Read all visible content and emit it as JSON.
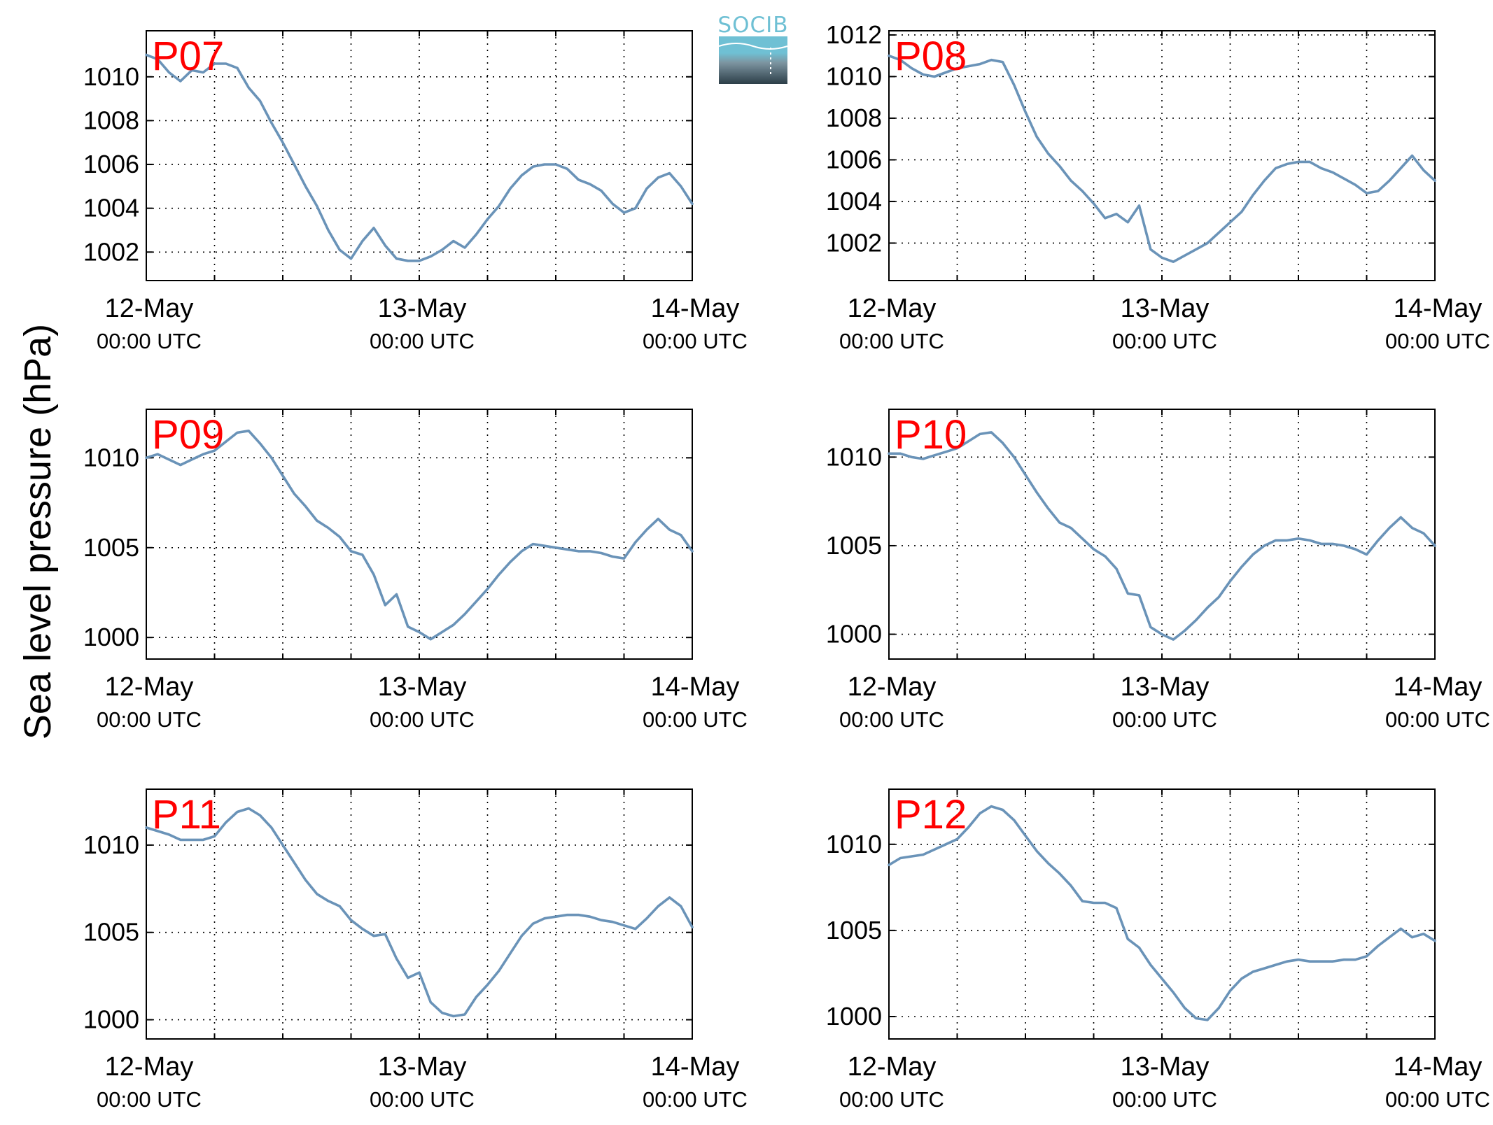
{
  "figure": {
    "ylabel": "Sea level pressure (hPa)",
    "logo_text": "SOCIB",
    "line_color": "#6a93b8",
    "station_label_color": "#ff0000",
    "logo_top_color": "#6fc0d4",
    "logo_bottom_color": "#2c3e48"
  },
  "chart_data": [
    {
      "type": "line",
      "title": "P07",
      "xlim": [
        0,
        48
      ],
      "ylim": [
        1000.7,
        1012.1
      ],
      "yticks": [
        1002,
        1004,
        1006,
        1008,
        1010
      ],
      "xticks": [
        {
          "x": 0,
          "date": "12-May",
          "time": "00:00 UTC"
        },
        {
          "x": 24,
          "date": "13-May",
          "time": "00:00 UTC"
        },
        {
          "x": 48,
          "date": "14-May",
          "time": "00:00 UTC"
        }
      ],
      "grid_x": [
        6,
        12,
        18,
        24,
        30,
        36,
        42
      ],
      "grid_y": [
        1002,
        1004,
        1006,
        1008,
        1010
      ],
      "grid": true,
      "series": [
        {
          "x": [
            0,
            1,
            2,
            3,
            4,
            5,
            6,
            7,
            8,
            9,
            10,
            11,
            12,
            13,
            14,
            15,
            16,
            17,
            18,
            19,
            20,
            21,
            22,
            23,
            24,
            25,
            26,
            27,
            28,
            29,
            30,
            31,
            32,
            33,
            34,
            35,
            36,
            37,
            38,
            39,
            40,
            41,
            42,
            43,
            44,
            45,
            46,
            47,
            48
          ],
          "y": [
            1011.0,
            1010.8,
            1010.2,
            1009.8,
            1010.3,
            1010.2,
            1010.6,
            1010.6,
            1010.4,
            1009.5,
            1008.9,
            1007.9,
            1007.0,
            1006.0,
            1005.0,
            1004.1,
            1003.0,
            1002.1,
            1001.7,
            1002.5,
            1003.1,
            1002.3,
            1001.7,
            1001.6,
            1001.6,
            1001.8,
            1002.1,
            1002.5,
            1002.2,
            1002.8,
            1003.5,
            1004.1,
            1004.9,
            1005.5,
            1005.9,
            1006.0,
            1006.0,
            1005.8,
            1005.3,
            1005.1,
            1004.8,
            1004.2,
            1003.8,
            1004.0,
            1004.9,
            1005.4,
            1005.6,
            1005.0,
            1004.2
          ]
        }
      ]
    },
    {
      "type": "line",
      "title": "P08",
      "xlim": [
        0,
        48
      ],
      "ylim": [
        1000.2,
        1012.2
      ],
      "yticks": [
        1002,
        1004,
        1006,
        1008,
        1010,
        1012
      ],
      "xticks": [
        {
          "x": 0,
          "date": "12-May",
          "time": "00:00 UTC"
        },
        {
          "x": 24,
          "date": "13-May",
          "time": "00:00 UTC"
        },
        {
          "x": 48,
          "date": "14-May",
          "time": "00:00 UTC"
        }
      ],
      "grid_x": [
        6,
        12,
        18,
        24,
        30,
        36,
        42
      ],
      "grid_y": [
        1002,
        1004,
        1006,
        1008,
        1010,
        1012
      ],
      "grid": true,
      "series": [
        {
          "x": [
            0,
            1,
            2,
            3,
            4,
            5,
            6,
            7,
            8,
            9,
            10,
            11,
            12,
            13,
            14,
            15,
            16,
            17,
            18,
            19,
            20,
            21,
            22,
            23,
            24,
            25,
            26,
            27,
            28,
            29,
            30,
            31,
            32,
            33,
            34,
            35,
            36,
            37,
            38,
            39,
            40,
            41,
            42,
            43,
            44,
            45,
            46,
            47,
            48
          ],
          "y": [
            1011.0,
            1010.8,
            1010.4,
            1010.1,
            1010.0,
            1010.2,
            1010.4,
            1010.5,
            1010.6,
            1010.8,
            1010.7,
            1009.6,
            1008.3,
            1007.1,
            1006.3,
            1005.7,
            1005.0,
            1004.5,
            1003.9,
            1003.2,
            1003.4,
            1003.0,
            1003.8,
            1001.7,
            1001.3,
            1001.1,
            1001.4,
            1001.7,
            1002.0,
            1002.5,
            1003.0,
            1003.5,
            1004.3,
            1005.0,
            1005.6,
            1005.8,
            1005.9,
            1005.9,
            1005.6,
            1005.4,
            1005.1,
            1004.8,
            1004.4,
            1004.5,
            1005.0,
            1005.6,
            1006.2,
            1005.5,
            1005.0
          ]
        }
      ]
    },
    {
      "type": "line",
      "title": "P09",
      "xlim": [
        0,
        48
      ],
      "ylim": [
        998.8,
        1012.7
      ],
      "yticks": [
        1000,
        1005,
        1010
      ],
      "xticks": [
        {
          "x": 0,
          "date": "12-May",
          "time": "00:00 UTC"
        },
        {
          "x": 24,
          "date": "13-May",
          "time": "00:00 UTC"
        },
        {
          "x": 48,
          "date": "14-May",
          "time": "00:00 UTC"
        }
      ],
      "grid_x": [
        6,
        12,
        18,
        24,
        30,
        36,
        42
      ],
      "grid_y": [
        1000,
        1005,
        1010
      ],
      "grid": true,
      "series": [
        {
          "x": [
            0,
            1,
            2,
            3,
            4,
            5,
            6,
            7,
            8,
            9,
            10,
            11,
            12,
            13,
            14,
            15,
            16,
            17,
            18,
            19,
            20,
            21,
            22,
            23,
            24,
            25,
            26,
            27,
            28,
            29,
            30,
            31,
            32,
            33,
            34,
            35,
            36,
            37,
            38,
            39,
            40,
            41,
            42,
            43,
            44,
            45,
            46,
            47,
            48
          ],
          "y": [
            1010.0,
            1010.2,
            1009.9,
            1009.6,
            1009.9,
            1010.2,
            1010.4,
            1010.9,
            1011.4,
            1011.5,
            1010.8,
            1010.0,
            1009.0,
            1008.0,
            1007.3,
            1006.5,
            1006.1,
            1005.6,
            1004.8,
            1004.6,
            1003.5,
            1001.8,
            1002.4,
            1000.6,
            1000.3,
            999.9,
            1000.3,
            1000.7,
            1001.3,
            1002.0,
            1002.7,
            1003.5,
            1004.2,
            1004.8,
            1005.2,
            1005.1,
            1005.0,
            1004.9,
            1004.8,
            1004.8,
            1004.7,
            1004.5,
            1004.4,
            1005.3,
            1006.0,
            1006.6,
            1006.0,
            1005.7,
            1004.8
          ]
        }
      ]
    },
    {
      "type": "line",
      "title": "P10",
      "xlim": [
        0,
        48
      ],
      "ylim": [
        998.6,
        1012.7
      ],
      "yticks": [
        1000,
        1005,
        1010
      ],
      "xticks": [
        {
          "x": 0,
          "date": "12-May",
          "time": "00:00 UTC"
        },
        {
          "x": 24,
          "date": "13-May",
          "time": "00:00 UTC"
        },
        {
          "x": 48,
          "date": "14-May",
          "time": "00:00 UTC"
        }
      ],
      "grid_x": [
        6,
        12,
        18,
        24,
        30,
        36,
        42
      ],
      "grid_y": [
        1000,
        1005,
        1010
      ],
      "grid": true,
      "series": [
        {
          "x": [
            0,
            1,
            2,
            3,
            4,
            5,
            6,
            7,
            8,
            9,
            10,
            11,
            12,
            13,
            14,
            15,
            16,
            17,
            18,
            19,
            20,
            21,
            22,
            23,
            24,
            25,
            26,
            27,
            28,
            29,
            30,
            31,
            32,
            33,
            34,
            35,
            36,
            37,
            38,
            39,
            40,
            41,
            42,
            43,
            44,
            45,
            46,
            47,
            48
          ],
          "y": [
            1010.2,
            1010.2,
            1010.0,
            1009.9,
            1010.1,
            1010.3,
            1010.5,
            1010.9,
            1011.3,
            1011.4,
            1010.8,
            1010.0,
            1009.0,
            1008.0,
            1007.1,
            1006.3,
            1006.0,
            1005.4,
            1004.8,
            1004.4,
            1003.7,
            1002.3,
            1002.2,
            1000.4,
            1000.0,
            999.7,
            1000.2,
            1000.8,
            1001.5,
            1002.1,
            1003.0,
            1003.8,
            1004.5,
            1005.0,
            1005.3,
            1005.3,
            1005.4,
            1005.3,
            1005.1,
            1005.1,
            1005.0,
            1004.8,
            1004.5,
            1005.3,
            1006.0,
            1006.6,
            1006.0,
            1005.7,
            1005.0
          ]
        }
      ]
    },
    {
      "type": "line",
      "title": "P11",
      "xlim": [
        0,
        48
      ],
      "ylim": [
        998.9,
        1013.2
      ],
      "yticks": [
        1000,
        1005,
        1010
      ],
      "xticks": [
        {
          "x": 0,
          "date": "12-May",
          "time": "00:00 UTC"
        },
        {
          "x": 24,
          "date": "13-May",
          "time": "00:00 UTC"
        },
        {
          "x": 48,
          "date": "14-May",
          "time": "00:00 UTC"
        }
      ],
      "grid_x": [
        6,
        12,
        18,
        24,
        30,
        36,
        42
      ],
      "grid_y": [
        1000,
        1005,
        1010
      ],
      "grid": true,
      "series": [
        {
          "x": [
            0,
            1,
            2,
            3,
            4,
            5,
            6,
            7,
            8,
            9,
            10,
            11,
            12,
            13,
            14,
            15,
            16,
            17,
            18,
            19,
            20,
            21,
            22,
            23,
            24,
            25,
            26,
            27,
            28,
            29,
            30,
            31,
            32,
            33,
            34,
            35,
            36,
            37,
            38,
            39,
            40,
            41,
            42,
            43,
            44,
            45,
            46,
            47,
            48
          ],
          "y": [
            1011.0,
            1010.8,
            1010.6,
            1010.3,
            1010.3,
            1010.3,
            1010.5,
            1011.3,
            1011.9,
            1012.1,
            1011.7,
            1011.0,
            1010.0,
            1009.0,
            1008.0,
            1007.2,
            1006.8,
            1006.5,
            1005.7,
            1005.2,
            1004.8,
            1004.9,
            1003.5,
            1002.4,
            1002.7,
            1001.0,
            1000.4,
            1000.2,
            1000.3,
            1001.3,
            1002.0,
            1002.8,
            1003.8,
            1004.8,
            1005.5,
            1005.8,
            1005.9,
            1006.0,
            1006.0,
            1005.9,
            1005.7,
            1005.6,
            1005.4,
            1005.2,
            1005.8,
            1006.5,
            1007.0,
            1006.5,
            1005.3
          ]
        }
      ]
    },
    {
      "type": "line",
      "title": "P12",
      "xlim": [
        0,
        48
      ],
      "ylim": [
        998.7,
        1013.2
      ],
      "yticks": [
        1000,
        1005,
        1010
      ],
      "xticks": [
        {
          "x": 0,
          "date": "12-May",
          "time": "00:00 UTC"
        },
        {
          "x": 24,
          "date": "13-May",
          "time": "00:00 UTC"
        },
        {
          "x": 48,
          "date": "14-May",
          "time": "00:00 UTC"
        }
      ],
      "grid_x": [
        6,
        12,
        18,
        24,
        30,
        36,
        42
      ],
      "grid_y": [
        1000,
        1005,
        1010
      ],
      "grid": true,
      "series": [
        {
          "x": [
            0,
            1,
            2,
            3,
            4,
            5,
            6,
            7,
            8,
            9,
            10,
            11,
            12,
            13,
            14,
            15,
            16,
            17,
            18,
            19,
            20,
            21,
            22,
            23,
            24,
            25,
            26,
            27,
            28,
            29,
            30,
            31,
            32,
            33,
            34,
            35,
            36,
            37,
            38,
            39,
            40,
            41,
            42,
            43,
            44,
            45,
            46,
            47,
            48
          ],
          "y": [
            1008.8,
            1009.2,
            1009.3,
            1009.4,
            1009.7,
            1010.0,
            1010.3,
            1011.0,
            1011.8,
            1012.2,
            1012.0,
            1011.4,
            1010.5,
            1009.6,
            1008.9,
            1008.3,
            1007.6,
            1006.7,
            1006.6,
            1006.6,
            1006.3,
            1004.5,
            1004.0,
            1003.0,
            1002.2,
            1001.4,
            1000.5,
            999.9,
            999.8,
            1000.5,
            1001.5,
            1002.2,
            1002.6,
            1002.8,
            1003.0,
            1003.2,
            1003.3,
            1003.2,
            1003.2,
            1003.2,
            1003.3,
            1003.3,
            1003.5,
            1004.1,
            1004.6,
            1005.1,
            1004.6,
            1004.8,
            1004.4
          ]
        }
      ]
    }
  ]
}
